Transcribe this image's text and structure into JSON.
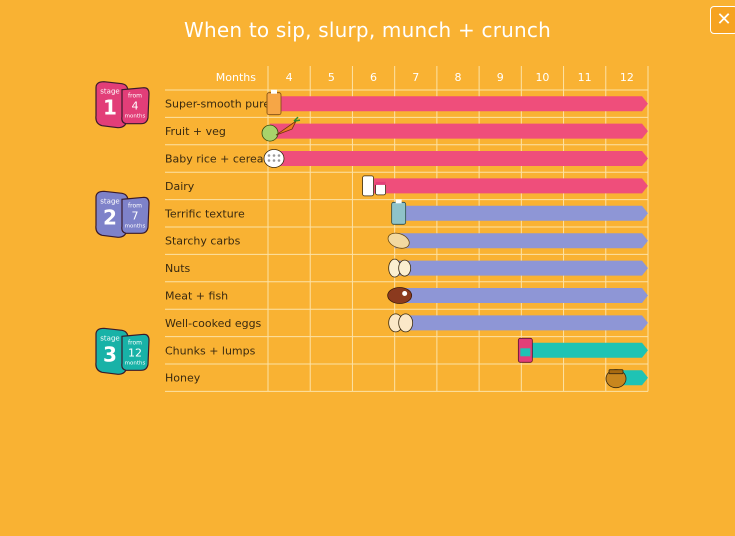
{
  "title": "When to sip, slurp, munch + crunch",
  "close_label": "✕",
  "chart_data": {
    "type": "bar",
    "orientation": "horizontal-timeline",
    "xlabel": "Months",
    "x_ticks": [
      4,
      5,
      6,
      7,
      8,
      9,
      10,
      11,
      12
    ],
    "xlim": [
      4,
      12
    ],
    "grid": true,
    "categories": [
      "Super-smooth purees",
      "Fruit + veg",
      "Baby rice + cereals",
      "Dairy",
      "Terrific texture",
      "Starchy carbs",
      "Nuts",
      "Meat + fish",
      "Well-cooked eggs",
      "Chunks + lumps",
      "Honey"
    ],
    "start_month": [
      4,
      4,
      4,
      6.5,
      7,
      7,
      7,
      7,
      7,
      10,
      12
    ],
    "end_month": [
      12,
      12,
      12,
      12,
      12,
      12,
      12,
      12,
      12,
      12,
      12
    ],
    "row_stage": [
      1,
      1,
      1,
      1,
      2,
      2,
      2,
      2,
      2,
      3,
      3
    ],
    "stage_colors": {
      "1": "#EF4E7B",
      "2": "#8E96D6",
      "3": "#1EC3B4"
    }
  },
  "stages": [
    {
      "stage_word": "stage",
      "number": "1",
      "from_word": "from",
      "month": "4",
      "months_word": "months",
      "color": "#E23E78"
    },
    {
      "stage_word": "stage",
      "number": "2",
      "from_word": "from",
      "month": "7",
      "months_word": "months",
      "color": "#7E82C9"
    },
    {
      "stage_word": "stage",
      "number": "3",
      "from_word": "from",
      "month": "12",
      "months_word": "months",
      "color": "#18B2A7"
    }
  ],
  "icons": [
    "pouch-icon",
    "fruit-veg-icon",
    "rice-icon",
    "dairy-icon",
    "texture-pouch-icon",
    "bread-icon",
    "nuts-icon",
    "meat-icon",
    "eggs-icon",
    "chunks-pouch-icon",
    "honey-pot-icon"
  ],
  "colors": {
    "background": "#F9B233",
    "grid": "#FCE2A6"
  }
}
